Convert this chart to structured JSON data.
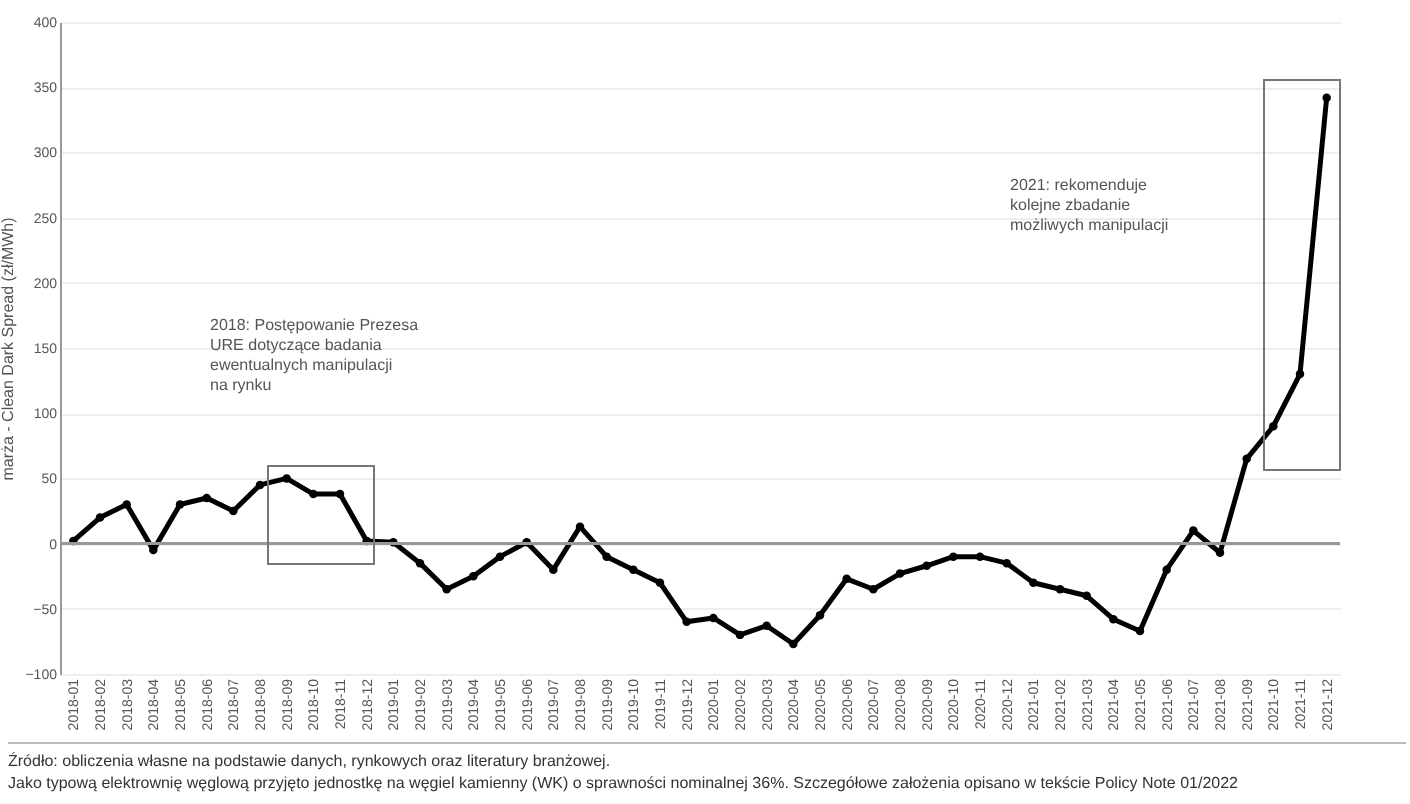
{
  "chart_data": {
    "type": "line",
    "ylabel": "marża - Clean Dark Spread (zł/MWh)",
    "categories": [
      "2018-01",
      "2018-02",
      "2018-03",
      "2018-04",
      "2018-05",
      "2018-06",
      "2018-07",
      "2018-08",
      "2018-09",
      "2018-10",
      "2018-11",
      "2018-12",
      "2019-01",
      "2019-02",
      "2019-03",
      "2019-04",
      "2019-05",
      "2019-06",
      "2019-07",
      "2019-08",
      "2019-09",
      "2019-10",
      "2019-11",
      "2019-12",
      "2020-01",
      "2020-02",
      "2020-03",
      "2020-04",
      "2020-05",
      "2020-06",
      "2020-07",
      "2020-08",
      "2020-09",
      "2020-10",
      "2020-11",
      "2020-12",
      "2021-01",
      "2021-02",
      "2021-03",
      "2021-04",
      "2021-05",
      "2021-06",
      "2021-07",
      "2021-08",
      "2021-09",
      "2021-10",
      "2021-11",
      "2021-12"
    ],
    "series": [
      {
        "color": "#000000",
        "values": [
          2,
          20,
          30,
          -5,
          30,
          35,
          25,
          45,
          50,
          38,
          38,
          2,
          1,
          -15,
          -35,
          -25,
          -10,
          1,
          -20,
          13,
          -10,
          -20,
          -30,
          -60,
          -57,
          -70,
          -63,
          -77,
          -55,
          -27,
          -35,
          -23,
          -17,
          -10,
          -10,
          -15,
          -30,
          -35,
          -40,
          -58,
          -67,
          -20,
          10,
          -7,
          65,
          90,
          130,
          342
        ]
      }
    ],
    "ylim": [
      -100,
      400
    ],
    "yticks": [
      -100,
      -50,
      0,
      50,
      100,
      150,
      200,
      250,
      300,
      350,
      400
    ],
    "grid": "y",
    "marker": "circle",
    "line_style": "solid",
    "ref_lines": [
      {
        "axis": "y",
        "value": 0,
        "color": "#999999"
      }
    ],
    "annotations": [
      "2018: Postępowanie Prezesa URE dotyczące badania ewentualnych manipulacji na rynku",
      "2021: rekomenduje kolejne zbadanie możliwych manipulacji",
      "Źródło: obliczenia własne na podstawie danych, rynkowych oraz literatury branżowej.",
      "Jako typową elektrownię węglową przyjęto jednostkę na węgiel kamienny (WK) o sprawności nominalnej 36%. Szczegółowe założenia opisano w tekście Policy Note 01/2022"
    ]
  }
}
